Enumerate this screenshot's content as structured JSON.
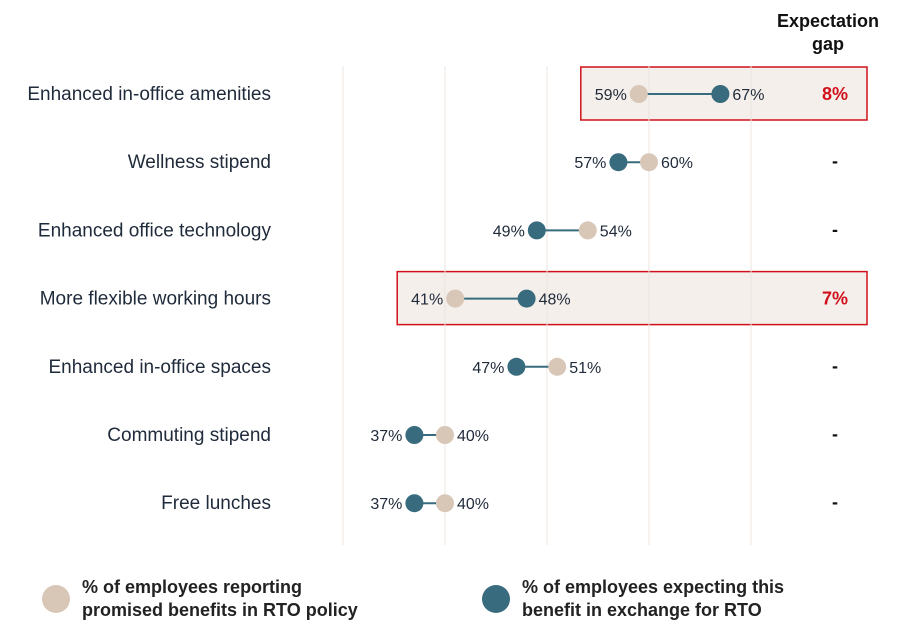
{
  "chart_data": {
    "type": "dumbbell",
    "gap_header": "Expectation gap",
    "gap_header_lines": [
      "Expectation",
      "gap"
    ],
    "categories": [
      "Enhanced in-office amenities",
      "Wellness stipend",
      "Enhanced office technology",
      "More flexible working hours",
      "Enhanced in-office spaces",
      "Commuting stipend",
      "Free lunches"
    ],
    "series": [
      {
        "name": "% of employees reporting promised benefits in RTO policy",
        "values": [
          59,
          60,
          54,
          41,
          51,
          40,
          40
        ],
        "color": "#d8c7b7"
      },
      {
        "name": "% of employees expecting this benefit in exchange for RTO",
        "values": [
          67,
          57,
          49,
          48,
          47,
          37,
          37
        ],
        "color": "#386b7d"
      }
    ],
    "gaps": [
      "8%",
      "-",
      "-",
      "7%",
      "-",
      "-",
      "-"
    ],
    "highlighted": [
      true,
      false,
      false,
      true,
      false,
      false,
      false
    ],
    "highlight_color": "#d0111b",
    "highlight_fill": "#f4efeb",
    "grid": true,
    "legend_position": "bottom",
    "legend_lines": [
      [
        "% of employees reporting",
        "promised benefits in RTO policy"
      ],
      [
        "% of employees expecting this",
        "benefit in exchange for RTO"
      ]
    ]
  }
}
